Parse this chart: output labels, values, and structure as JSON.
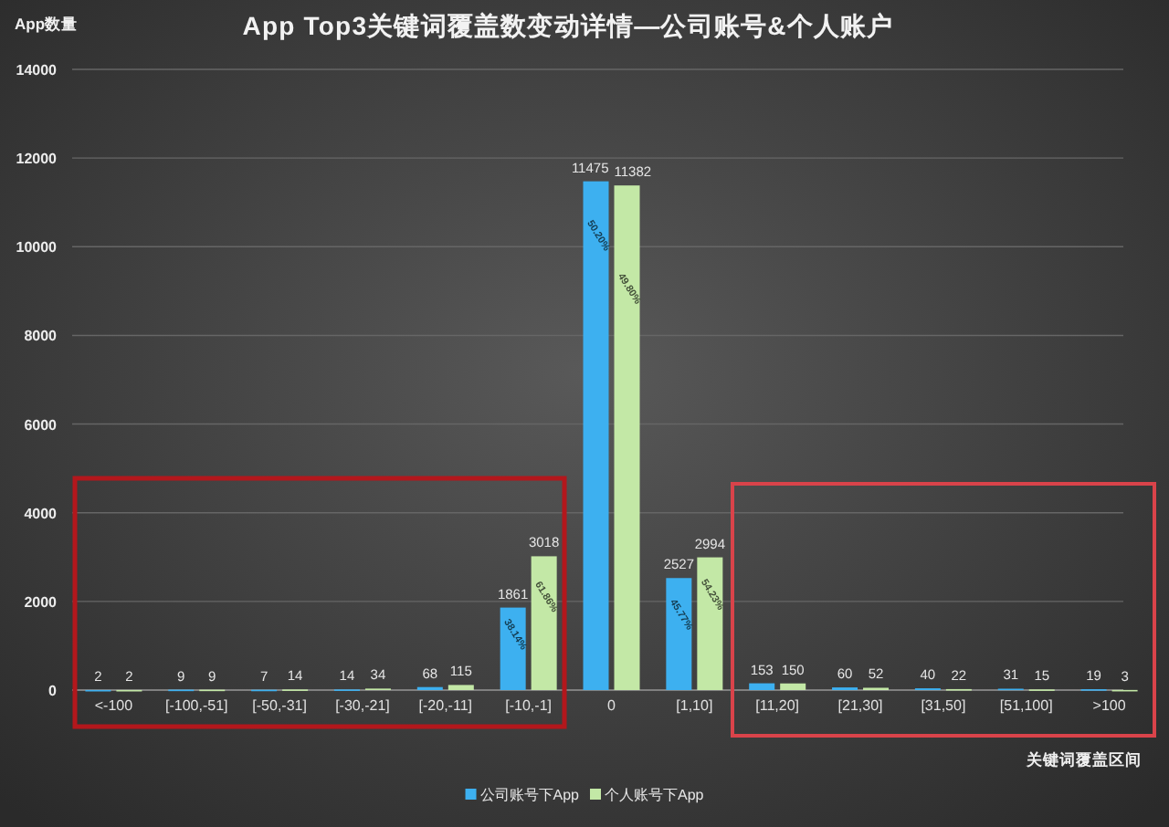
{
  "chart_data": {
    "type": "bar",
    "title": "App Top3关键词覆盖数变动详情—公司账号&个人账户",
    "xlabel": "关键词覆盖区间",
    "ylabel": "App数量",
    "categories": [
      "<-100",
      "[-100,-51]",
      "[-50,-31]",
      "[-30,-21]",
      "[-20,-11]",
      "[-10,-1]",
      "0",
      "[1,10]",
      "[11,20]",
      "[21,30]",
      "[31,50]",
      "[51,100]",
      ">100"
    ],
    "series": [
      {
        "name": "公司账号下App",
        "color": "#3db0f0",
        "values": [
          2,
          9,
          7,
          14,
          68,
          1861,
          11475,
          2527,
          153,
          60,
          40,
          31,
          19
        ]
      },
      {
        "name": "个人账号下App",
        "color": "#c3e8a6",
        "values": [
          2,
          9,
          14,
          34,
          115,
          3018,
          11382,
          2994,
          150,
          52,
          22,
          15,
          3
        ]
      }
    ],
    "ylim": [
      0,
      14000
    ],
    "yticks": [
      0,
      2000,
      4000,
      6000,
      8000,
      10000,
      12000,
      14000
    ],
    "grid": "y",
    "legend": "bottom",
    "data_labels": true,
    "annotations": [
      {
        "text": "38.14%",
        "x": "[-10,-1]",
        "y": 1300
      },
      {
        "text": "61.86%",
        "x": "[-10,-1]",
        "y": 2150
      },
      {
        "text": "50.20%",
        "x": "0",
        "y": 10300
      },
      {
        "text": "49.80%",
        "x": "0",
        "y": 9100
      },
      {
        "text": "45.77%",
        "x": "[1,10]",
        "y": 1750
      },
      {
        "text": "54.23%",
        "x": "[1,10]",
        "y": 2200
      }
    ]
  }
}
